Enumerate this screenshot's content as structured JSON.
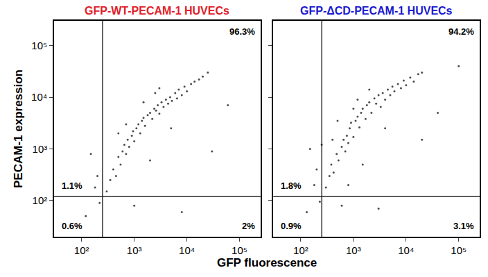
{
  "chart_data": {
    "type": "scatter",
    "log": true,
    "grid": false,
    "xlabel": "GFP fluorescence",
    "ylabel": "PECAM-1 expression",
    "xlim": [
      30,
      250000
    ],
    "ylim": [
      20,
      300000
    ],
    "xticks": [
      {
        "value": 100,
        "label": "10²"
      },
      {
        "value": 1000,
        "label": "10³"
      },
      {
        "value": 10000,
        "label": "10⁴"
      },
      {
        "value": 100000,
        "label": "10⁵"
      }
    ],
    "yticks": [
      {
        "value": 100,
        "label": "10²"
      },
      {
        "value": 1000,
        "label": "10³"
      },
      {
        "value": 10000,
        "label": "10⁴"
      },
      {
        "value": 100000,
        "label": "10⁵"
      }
    ],
    "marker": "dot",
    "color": "#000000",
    "gates": {
      "x": 250,
      "y": 120
    },
    "panels": [
      {
        "title": "GFP-WT-PECAM-1 HUVECs",
        "quadrants": {
          "upper right": {
            "value": 96.3,
            "label": "96.3%"
          },
          "upper left": {
            "value": 1.1,
            "label": "1.1%"
          },
          "lower left": {
            "value": 0.6,
            "label": "0.6%"
          },
          "lower right": {
            "value": 2,
            "label": "2%"
          }
        },
        "x": [
          300,
          350,
          400,
          450,
          500,
          550,
          600,
          650,
          700,
          750,
          800,
          900,
          950,
          1000,
          1100,
          1200,
          1300,
          1400,
          1500,
          1600,
          1800,
          2000,
          2200,
          2400,
          2600,
          2800,
          3000,
          3300,
          3600,
          4000,
          4400,
          4800,
          5200,
          6000,
          6500,
          7000,
          8000,
          9000,
          10000,
          12000,
          14000,
          17000,
          20000,
          25000,
          500,
          1500,
          3000,
          2000,
          5000,
          200,
          150,
          180,
          220,
          1000,
          8000,
          120,
          30000,
          700,
          2500,
          60000
        ],
        "y": [
          150,
          250,
          400,
          300,
          700,
          500,
          900,
          1200,
          800,
          1500,
          1100,
          1800,
          2200,
          1400,
          2500,
          3000,
          2000,
          3500,
          4000,
          2800,
          4500,
          5000,
          3800,
          6000,
          5500,
          7000,
          4800,
          8000,
          6500,
          9000,
          7500,
          10000,
          8500,
          12000,
          9500,
          14000,
          11000,
          16000,
          13000,
          18000,
          20000,
          22000,
          25000,
          30000,
          2000,
          8000,
          15000,
          600,
          2500,
          300,
          800,
          180,
          90,
          80,
          60,
          50,
          900,
          3000,
          12000,
          7000
        ]
      },
      {
        "title": "GFP-ΔCD-PECAM-1 HUVECs",
        "quadrants": {
          "upper right": {
            "value": 94.2,
            "label": "94.2%"
          },
          "upper left": {
            "value": 1.8,
            "label": "1.8%"
          },
          "lower left": {
            "value": 0.9,
            "label": "0.9%"
          },
          "lower right": {
            "value": 3.1,
            "label": "3.1%"
          }
        },
        "x": [
          300,
          350,
          380,
          420,
          480,
          520,
          600,
          650,
          700,
          750,
          800,
          850,
          900,
          1000,
          1100,
          1200,
          1300,
          1400,
          1500,
          1700,
          1800,
          2000,
          2200,
          2500,
          2700,
          3000,
          3300,
          3600,
          4000,
          4500,
          5000,
          5500,
          6000,
          7000,
          8000,
          9000,
          10000,
          12000,
          14000,
          17000,
          20000,
          400,
          1000,
          2000,
          1500,
          4000,
          200,
          150,
          180,
          230,
          600,
          3000,
          130,
          20000,
          500,
          1200,
          40000,
          800,
          250,
          100000
        ],
        "y": [
          180,
          300,
          500,
          350,
          800,
          600,
          1100,
          1500,
          900,
          1800,
          1300,
          2500,
          3200,
          1700,
          3500,
          4200,
          2600,
          5000,
          6000,
          3800,
          7000,
          8000,
          5000,
          9500,
          7500,
          11000,
          6500,
          12000,
          9000,
          14000,
          11000,
          16000,
          13000,
          18000,
          15000,
          21000,
          17000,
          24000,
          20000,
          28000,
          30000,
          1500,
          6000,
          14000,
          500,
          2500,
          400,
          1000,
          200,
          95,
          80,
          70,
          60,
          1500,
          3500,
          9000,
          5000,
          200,
          1200,
          40000
        ]
      }
    ]
  }
}
